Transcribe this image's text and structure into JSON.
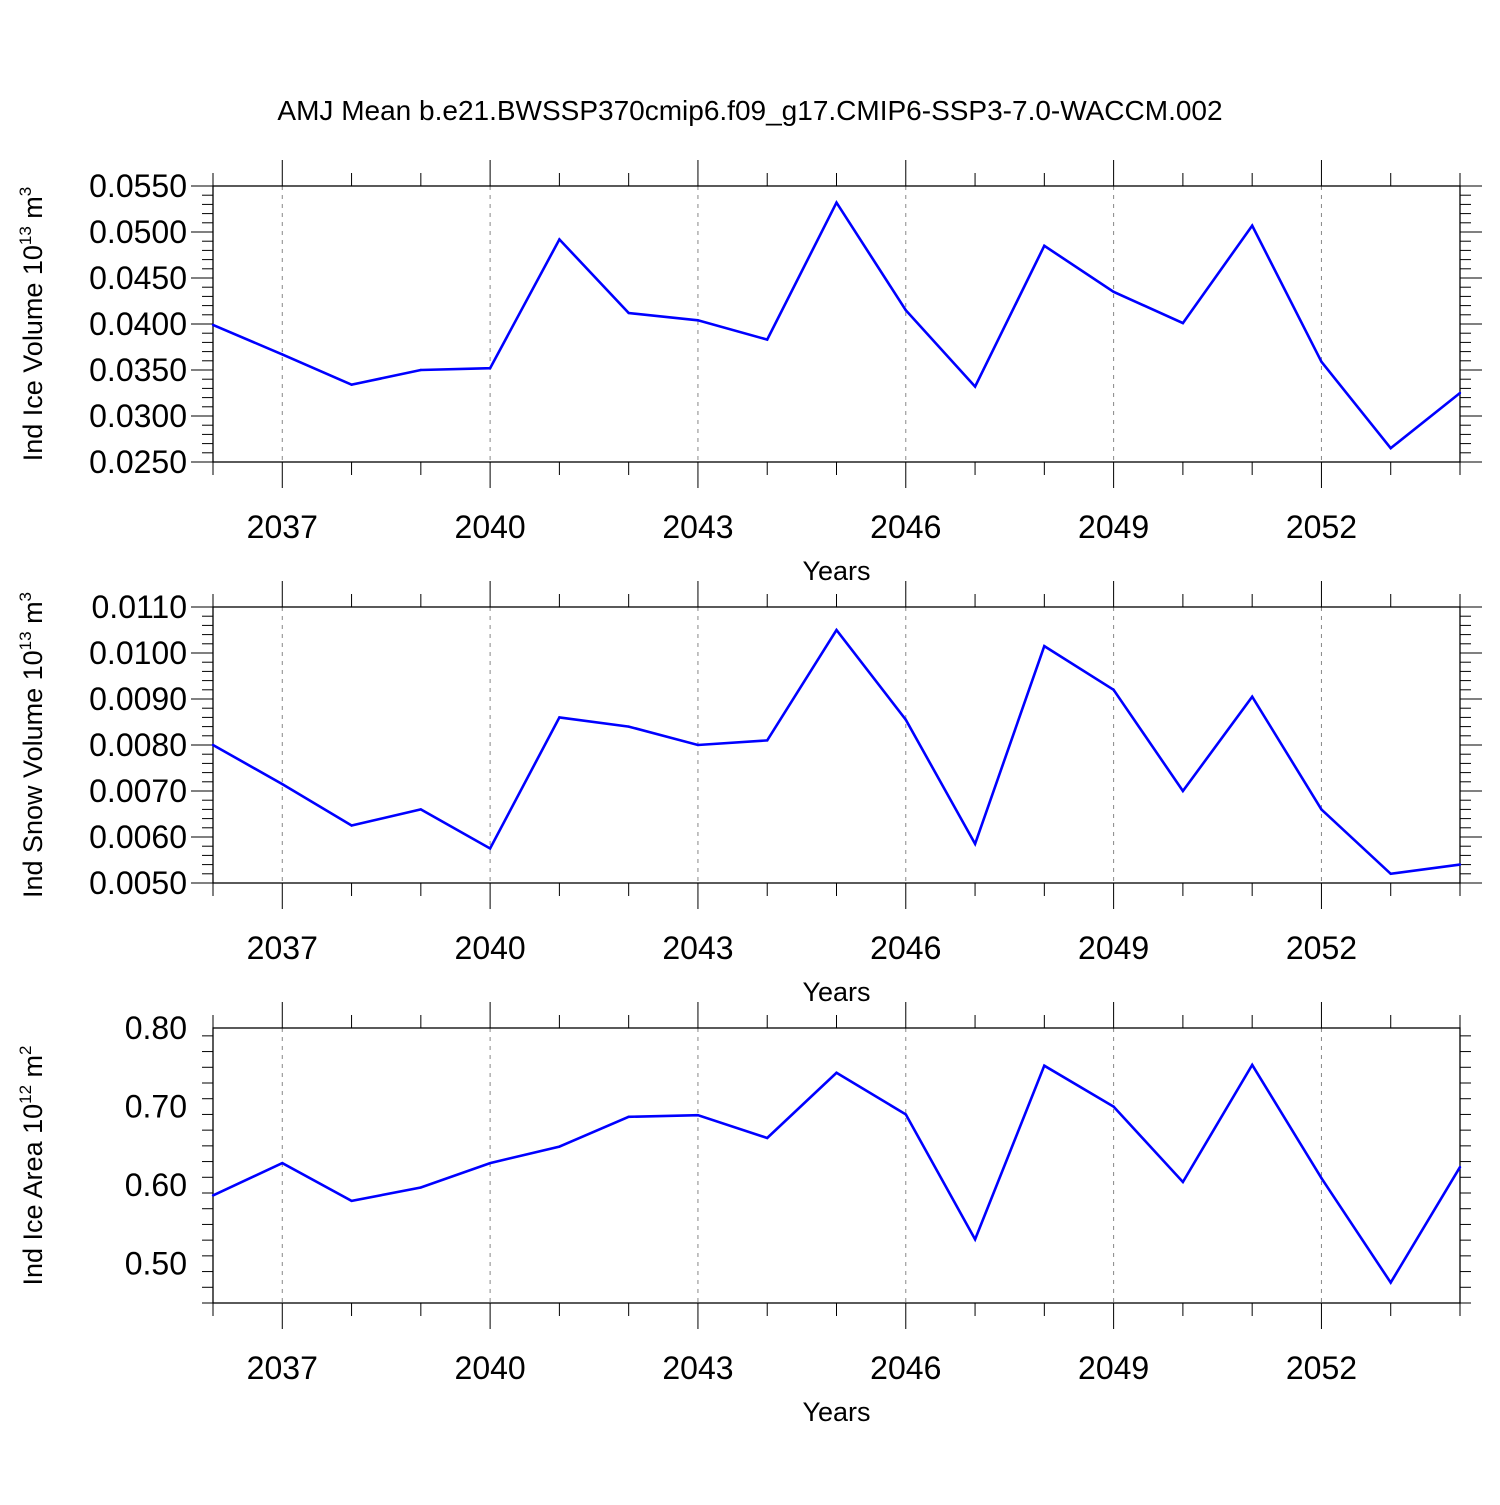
{
  "title": "AMJ Mean b.e21.BWSSP370cmip6.f09_g17.CMIP6-SSP3-7.0-WACCM.002",
  "line_color": "#0000ff",
  "chart_data": [
    {
      "type": "line",
      "xlabel": "Years",
      "ylabel": {
        "main": "Ind Ice Volume 10",
        "exp": "13",
        "unit": " m",
        "unit_exp": "3"
      },
      "xlim": [
        2036,
        2054
      ],
      "ylim": [
        0.025,
        0.055
      ],
      "yticks": [
        "0.0250",
        "0.0300",
        "0.0350",
        "0.0400",
        "0.0450",
        "0.0500",
        "0.0550"
      ],
      "ytick_values": [
        0.025,
        0.03,
        0.035,
        0.04,
        0.045,
        0.05,
        0.055
      ],
      "xticks": [
        "2037",
        "2040",
        "2043",
        "2046",
        "2049",
        "2052"
      ],
      "xtick_values": [
        2037,
        2040,
        2043,
        2046,
        2049,
        2052
      ],
      "grid": "vertical-dashed-at-major-x",
      "x": [
        2036,
        2037,
        2038,
        2039,
        2040,
        2041,
        2042,
        2043,
        2044,
        2045,
        2046,
        2047,
        2048,
        2049,
        2050,
        2051,
        2052,
        2053,
        2054
      ],
      "values": [
        0.0399,
        0.0367,
        0.0334,
        0.035,
        0.0352,
        0.0492,
        0.0412,
        0.0404,
        0.0383,
        0.0532,
        0.0415,
        0.0332,
        0.0485,
        0.0435,
        0.0401,
        0.0507,
        0.0359,
        0.0265,
        0.0325
      ]
    },
    {
      "type": "line",
      "xlabel": "Years",
      "ylabel": {
        "main": "Ind Snow Volume 10",
        "exp": "13",
        "unit": " m",
        "unit_exp": "3"
      },
      "xlim": [
        2036,
        2054
      ],
      "ylim": [
        0.005,
        0.011
      ],
      "yticks": [
        "0.0050",
        "0.0060",
        "0.0070",
        "0.0080",
        "0.0090",
        "0.0100",
        "0.0110"
      ],
      "ytick_values": [
        0.005,
        0.006,
        0.007,
        0.008,
        0.009,
        0.01,
        0.011
      ],
      "xticks": [
        "2037",
        "2040",
        "2043",
        "2046",
        "2049",
        "2052"
      ],
      "xtick_values": [
        2037,
        2040,
        2043,
        2046,
        2049,
        2052
      ],
      "grid": "vertical-dashed-at-major-x",
      "x": [
        2036,
        2037,
        2038,
        2039,
        2040,
        2041,
        2042,
        2043,
        2044,
        2045,
        2046,
        2047,
        2048,
        2049,
        2050,
        2051,
        2052,
        2053,
        2054
      ],
      "values": [
        0.008,
        0.00715,
        0.00625,
        0.0066,
        0.00575,
        0.0086,
        0.0084,
        0.008,
        0.0081,
        0.0105,
        0.00855,
        0.00585,
        0.01015,
        0.0092,
        0.007,
        0.00905,
        0.0066,
        0.0052,
        0.0054
      ]
    },
    {
      "type": "line",
      "xlabel": "Years",
      "ylabel": {
        "main": "Ind Ice Area 10",
        "exp": "12",
        "unit": " m",
        "unit_exp": "2"
      },
      "xlim": [
        2036,
        2054
      ],
      "ylim": [
        0.45,
        0.8
      ],
      "yticks": [
        "0.50",
        "0.60",
        "0.70",
        "0.80"
      ],
      "ytick_values": [
        0.5,
        0.6,
        0.7,
        0.8
      ],
      "xticks": [
        "2037",
        "2040",
        "2043",
        "2046",
        "2049",
        "2052"
      ],
      "xtick_values": [
        2037,
        2040,
        2043,
        2046,
        2049,
        2052
      ],
      "grid": "vertical-dashed-at-major-x",
      "x": [
        2036,
        2037,
        2038,
        2039,
        2040,
        2041,
        2042,
        2043,
        2044,
        2045,
        2046,
        2047,
        2048,
        2049,
        2050,
        2051,
        2052,
        2053,
        2054
      ],
      "values": [
        0.587,
        0.628,
        0.58,
        0.597,
        0.628,
        0.649,
        0.687,
        0.689,
        0.66,
        0.743,
        0.69,
        0.531,
        0.752,
        0.7,
        0.604,
        0.753,
        0.609,
        0.476,
        0.623
      ]
    }
  ]
}
